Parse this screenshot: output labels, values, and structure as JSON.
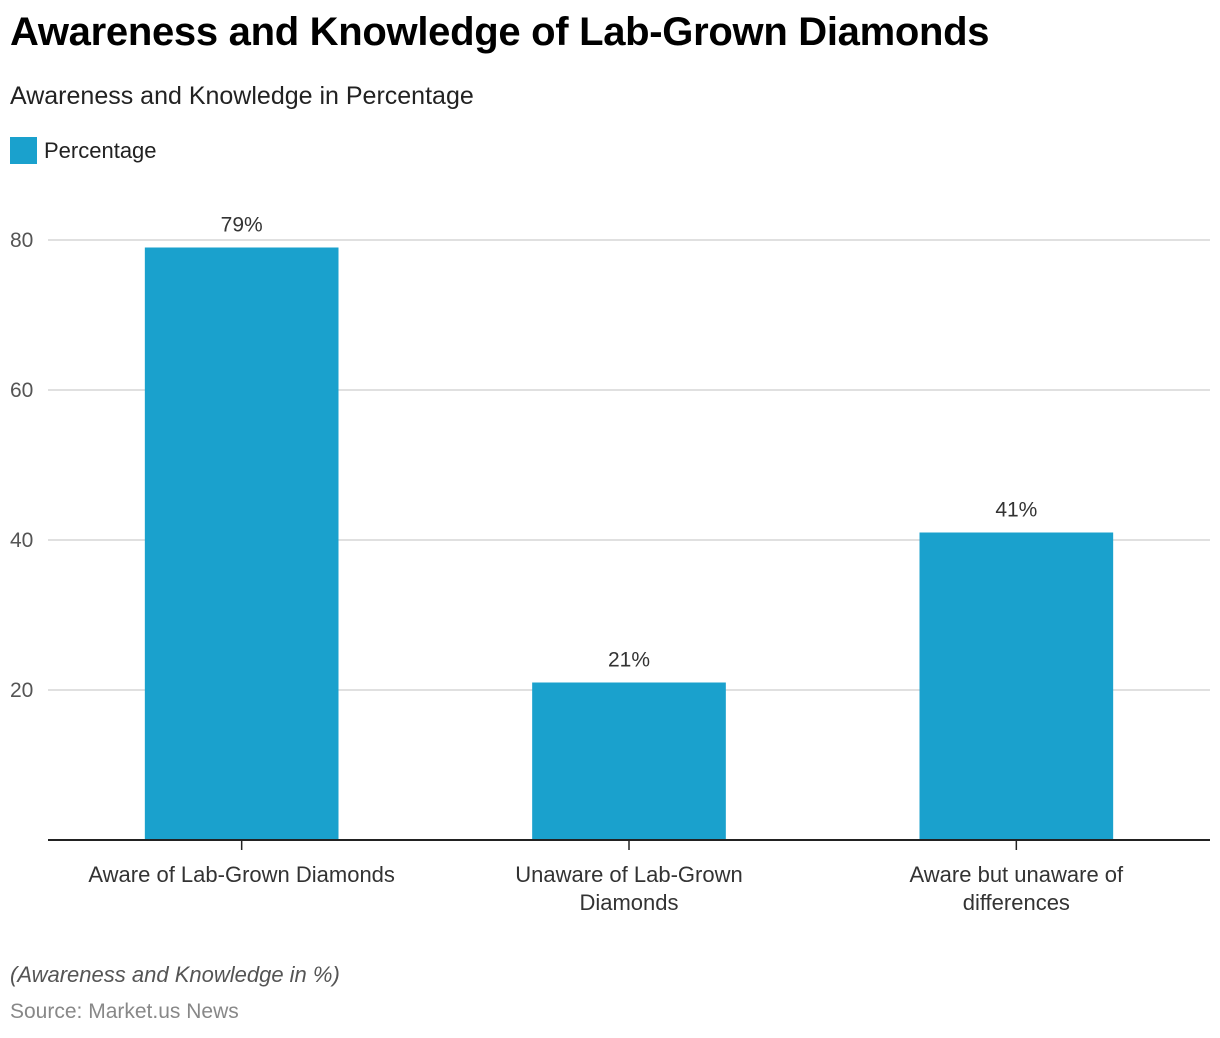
{
  "header": {
    "title": "Awareness and Knowledge of Lab-Grown Diamonds",
    "subtitle": "Awareness and Knowledge in Percentage"
  },
  "legend": {
    "label": "Percentage",
    "color": "#1aa1cd"
  },
  "footer": {
    "note": "(Awareness and Knowledge in %)",
    "source": "Source: Market.us News"
  },
  "chart_data": {
    "type": "bar",
    "title": "Awareness and Knowledge of Lab-Grown Diamonds",
    "subtitle": "Awareness and Knowledge in Percentage",
    "xlabel": "",
    "ylabel": "",
    "categories": [
      [
        "Aware of Lab-Grown Diamonds"
      ],
      [
        "Unaware of Lab-Grown",
        "Diamonds"
      ],
      [
        "Aware but unaware of",
        "differences"
      ]
    ],
    "series": [
      {
        "name": "Percentage",
        "values": [
          79,
          21,
          41
        ],
        "labels": [
          "79%",
          "21%",
          "41%"
        ],
        "color": "#1aa1cd"
      }
    ],
    "ylim": [
      0,
      80
    ],
    "yticks": [
      20,
      40,
      60,
      80
    ],
    "grid": true,
    "legend_position": "top-left"
  }
}
